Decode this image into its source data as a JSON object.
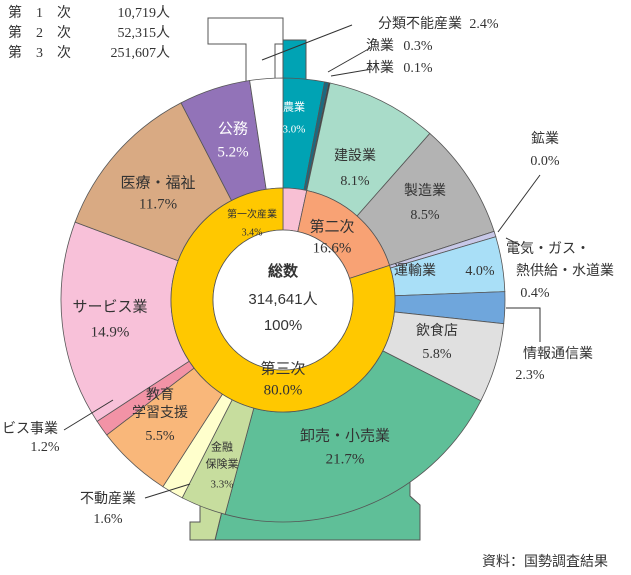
{
  "chart_data": {
    "type": "donut",
    "legend_rows": [
      {
        "label": "第　1　次",
        "value": 10719,
        "value_label": "10,719人"
      },
      {
        "label": "第　2　次",
        "value": 52315,
        "value_label": "52,315人"
      },
      {
        "label": "第　3　次",
        "value": 251607,
        "value_label": "251,607人"
      }
    ],
    "center": {
      "title": "総数",
      "total": 314641,
      "total_label": "314,641人",
      "share": 100,
      "share_label": "100%"
    },
    "outer": {
      "names": [
        [
          "農業"
        ],
        [
          "漁業"
        ],
        [
          "林業"
        ],
        [
          "建設業"
        ],
        [
          "製造業"
        ],
        [
          "鉱業"
        ],
        [
          "電気・ガス・",
          "熱供給・水道業"
        ],
        [
          "運輸業"
        ],
        [
          "情報通信業"
        ],
        [
          "飲食店"
        ],
        [
          "卸売・小売業"
        ],
        [
          "金融",
          "保険業"
        ],
        [
          "不動産業"
        ],
        [
          "教育",
          "学習支援"
        ],
        [
          "ビス事業"
        ],
        [
          "サービス業"
        ],
        [
          "医療・福祉"
        ],
        [
          "公務"
        ],
        [
          "分類不能産業"
        ]
      ],
      "values": [
        3.0,
        0.3,
        0.1,
        8.1,
        8.5,
        0.0,
        0.4,
        4.0,
        2.3,
        5.8,
        21.7,
        3.3,
        1.6,
        5.5,
        1.2,
        14.9,
        11.7,
        5.2,
        2.4
      ],
      "value_labels": [
        "3.0%",
        "0.3%",
        "0.1%",
        "8.1%",
        "8.5%",
        "0.0%",
        "0.4%",
        "4.0%",
        "2.3%",
        "5.8%",
        "21.7%",
        "3.3%",
        "1.6%",
        "5.5%",
        "1.2%",
        "14.9%",
        "11.7%",
        "5.2%",
        "2.4%"
      ],
      "colors": [
        "#00a3b4",
        "#1a6a80",
        "#333333",
        "#a9dcc9",
        "#b3b3b3",
        "#777777",
        "#c8c8e8",
        "#a9dff7",
        "#6fa6dc",
        "#e0e0e0",
        "#5fbf98",
        "#c7dd9e",
        "#ffffcc",
        "#f9b77a",
        "#f293a6",
        "#f8c1d9",
        "#d9aa83",
        "#9273b8",
        "#ffffff"
      ]
    },
    "inner": {
      "names": [
        [
          "第一次産業"
        ],
        [
          "第二次"
        ],
        [
          "第三次"
        ]
      ],
      "values": [
        3.4,
        16.6,
        80.0
      ],
      "value_labels": [
        "3.4%",
        "16.6%",
        "80.0%"
      ],
      "colors": [
        "#f8c0d4",
        "#f8a274",
        "#ffc800"
      ]
    },
    "source": "資料：国勢調査結果"
  }
}
